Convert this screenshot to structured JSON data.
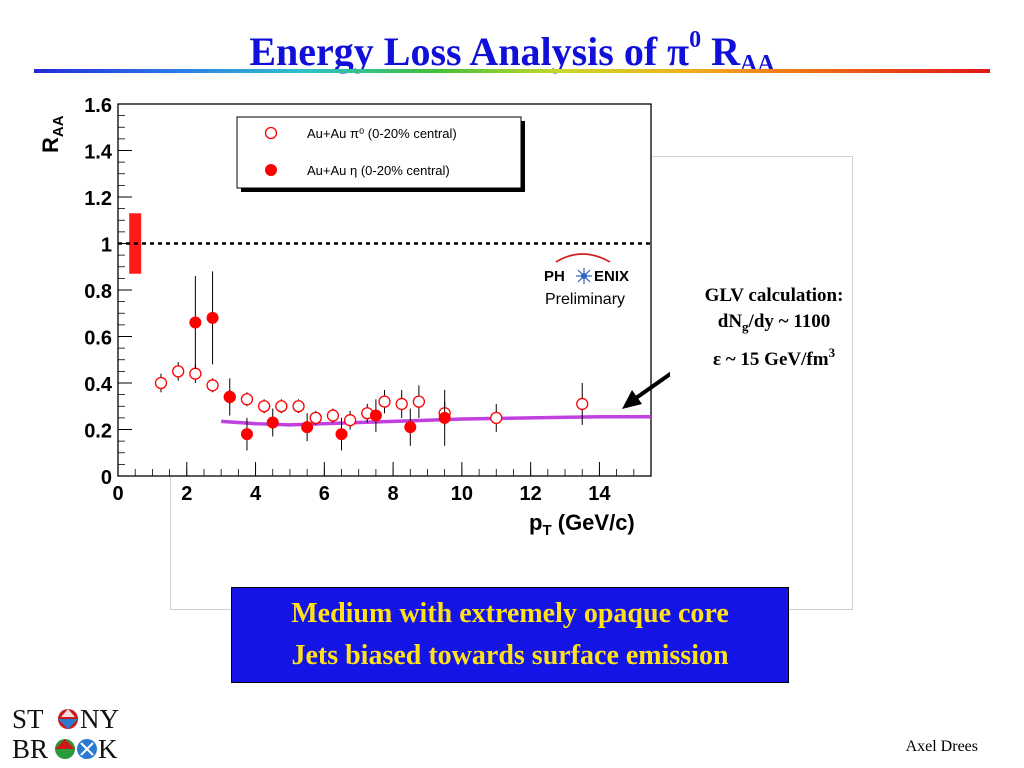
{
  "slide": {
    "title": "Energy Loss Analysis of π",
    "title_sup": "0",
    "title_tail": " R",
    "title_sub": "AA",
    "author": "Axel Drees"
  },
  "glv_note": {
    "line1": "GLV calculation:",
    "line2_pre": "dN",
    "line2_sub": "g",
    "line2_post": "/dy ~ 1100",
    "line3_pre": "ε ~ 15 GeV/fm",
    "line3_sup": "3"
  },
  "conclusion": {
    "line1": "Medium with extremely opaque core",
    "line2": "Jets biased towards surface emission"
  },
  "logo": {
    "row1_a": "ST",
    "row1_b": "NY",
    "row2_a": "BR",
    "row2_b": "K"
  },
  "experiment": {
    "name_a": "PH",
    "name_b": "ENIX",
    "status": "Preliminary"
  },
  "colors": {
    "title": "#1010d8",
    "eta": "#ff0000",
    "pi0": "#ff0000",
    "glv_curve": "#c040e0",
    "box_bg": "#1414e6",
    "box_text": "#ffe11a"
  },
  "chart_data": {
    "type": "scatter",
    "xlabel": "p_T (GeV/c)",
    "ylabel": "R_AA",
    "xlim": [
      0,
      15.5
    ],
    "ylim": [
      0,
      1.6
    ],
    "xticks": [
      0,
      2,
      4,
      6,
      8,
      10,
      12,
      14
    ],
    "yticks": [
      0,
      0.2,
      0.4,
      0.6,
      0.8,
      1,
      1.2,
      1.4,
      1.6
    ],
    "reference_line": 1,
    "legend_position": "top-left",
    "systematic_band": {
      "x": 0.5,
      "low": 0.87,
      "high": 1.13
    },
    "series": [
      {
        "name": "Au+Au π⁰ (0-20% central)",
        "marker": "open-circle",
        "points": [
          {
            "x": 1.25,
            "y": 0.4,
            "err": 0.04
          },
          {
            "x": 1.75,
            "y": 0.45,
            "err": 0.04
          },
          {
            "x": 2.25,
            "y": 0.44,
            "err": 0.04
          },
          {
            "x": 2.75,
            "y": 0.39,
            "err": 0.03
          },
          {
            "x": 3.25,
            "y": 0.34,
            "err": 0.03
          },
          {
            "x": 3.75,
            "y": 0.33,
            "err": 0.03
          },
          {
            "x": 4.25,
            "y": 0.3,
            "err": 0.03
          },
          {
            "x": 4.75,
            "y": 0.3,
            "err": 0.03
          },
          {
            "x": 5.25,
            "y": 0.3,
            "err": 0.03
          },
          {
            "x": 5.75,
            "y": 0.25,
            "err": 0.03
          },
          {
            "x": 6.25,
            "y": 0.26,
            "err": 0.03
          },
          {
            "x": 6.75,
            "y": 0.24,
            "err": 0.04
          },
          {
            "x": 7.25,
            "y": 0.27,
            "err": 0.04
          },
          {
            "x": 7.75,
            "y": 0.32,
            "err": 0.05
          },
          {
            "x": 8.25,
            "y": 0.31,
            "err": 0.06
          },
          {
            "x": 8.75,
            "y": 0.32,
            "err": 0.07
          },
          {
            "x": 9.5,
            "y": 0.27,
            "err": 0.05
          },
          {
            "x": 11.0,
            "y": 0.25,
            "err": 0.06
          },
          {
            "x": 13.5,
            "y": 0.31,
            "err": 0.09
          }
        ]
      },
      {
        "name": "Au+Au η (0-20% central)",
        "marker": "filled-circle",
        "points": [
          {
            "x": 2.25,
            "y": 0.66,
            "err": 0.2
          },
          {
            "x": 2.75,
            "y": 0.68,
            "err": 0.2
          },
          {
            "x": 3.25,
            "y": 0.34,
            "err": 0.08
          },
          {
            "x": 3.75,
            "y": 0.18,
            "err": 0.07
          },
          {
            "x": 4.5,
            "y": 0.23,
            "err": 0.06
          },
          {
            "x": 5.5,
            "y": 0.21,
            "err": 0.06
          },
          {
            "x": 6.5,
            "y": 0.18,
            "err": 0.07
          },
          {
            "x": 7.5,
            "y": 0.26,
            "err": 0.07
          },
          {
            "x": 8.5,
            "y": 0.21,
            "err": 0.08
          },
          {
            "x": 9.5,
            "y": 0.25,
            "err": 0.12
          }
        ]
      },
      {
        "type": "line",
        "x": [
          3.0,
          4.0,
          5.0,
          6.0,
          7.0,
          8.0,
          9.0,
          10.0,
          12.0,
          14.0,
          15.5
        ],
        "y": [
          0.235,
          0.225,
          0.22,
          0.225,
          0.23,
          0.235,
          0.24,
          0.245,
          0.25,
          0.255,
          0.255
        ]
      }
    ]
  }
}
